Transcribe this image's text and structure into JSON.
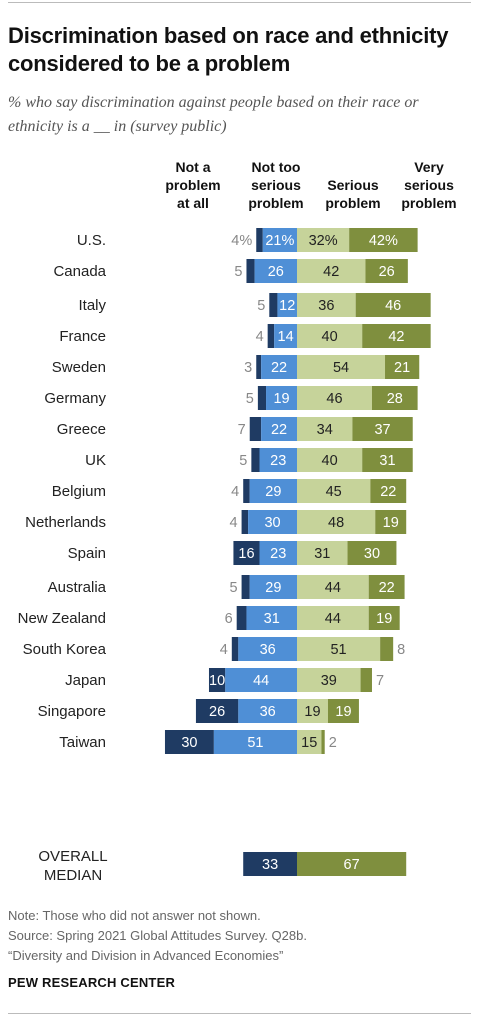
{
  "header": {
    "title": "Discrimination based on race and ethnicity considered to be a problem",
    "subtitle": "% who say discrimination against people based on their race or ethnicity is a __ in (survey public)"
  },
  "columns": [
    {
      "label": "Not a\nproblem\nat all"
    },
    {
      "label": "Not too\nserious\nproblem"
    },
    {
      "label": "Serious\nproblem"
    },
    {
      "label": "Very\nserious\nproblem"
    }
  ],
  "chart_data": {
    "type": "bar",
    "orientation": "horizontal-diverging-stacked",
    "series": [
      {
        "name": "Not a problem at all",
        "color": "#1f3b63"
      },
      {
        "name": "Not too serious problem",
        "color": "#4f8fd6"
      },
      {
        "name": "Serious problem",
        "color": "#c6d39a"
      },
      {
        "name": "Very serious problem",
        "color": "#7f8f3e"
      }
    ],
    "rows": [
      {
        "group": 0,
        "label": "U.S.",
        "values": [
          4,
          21,
          32,
          42
        ],
        "display": [
          "4%",
          "21%",
          "32%",
          "42%"
        ]
      },
      {
        "group": 0,
        "label": "Canada",
        "values": [
          5,
          26,
          42,
          26
        ],
        "display": [
          "5",
          "26",
          "42",
          "26"
        ]
      },
      {
        "group": 1,
        "label": "Italy",
        "values": [
          5,
          12,
          36,
          46
        ],
        "display": [
          "5",
          "12",
          "36",
          "46"
        ]
      },
      {
        "group": 1,
        "label": "France",
        "values": [
          4,
          14,
          40,
          42
        ],
        "display": [
          "4",
          "14",
          "40",
          "42"
        ]
      },
      {
        "group": 1,
        "label": "Sweden",
        "values": [
          3,
          22,
          54,
          21
        ],
        "display": [
          "3",
          "22",
          "54",
          "21"
        ]
      },
      {
        "group": 1,
        "label": "Germany",
        "values": [
          5,
          19,
          46,
          28
        ],
        "display": [
          "5",
          "19",
          "46",
          "28"
        ]
      },
      {
        "group": 1,
        "label": "Greece",
        "values": [
          7,
          22,
          34,
          37
        ],
        "display": [
          "7",
          "22",
          "34",
          "37"
        ]
      },
      {
        "group": 1,
        "label": "UK",
        "values": [
          5,
          23,
          40,
          31
        ],
        "display": [
          "5",
          "23",
          "40",
          "31"
        ]
      },
      {
        "group": 1,
        "label": "Belgium",
        "values": [
          4,
          29,
          45,
          22
        ],
        "display": [
          "4",
          "29",
          "45",
          "22"
        ]
      },
      {
        "group": 1,
        "label": "Netherlands",
        "values": [
          4,
          30,
          48,
          19
        ],
        "display": [
          "4",
          "30",
          "48",
          "19"
        ]
      },
      {
        "group": 1,
        "label": "Spain",
        "values": [
          16,
          23,
          31,
          30
        ],
        "display": [
          "16",
          "23",
          "31",
          "30"
        ]
      },
      {
        "group": 2,
        "label": "Australia",
        "values": [
          5,
          29,
          44,
          22
        ],
        "display": [
          "5",
          "29",
          "44",
          "22"
        ]
      },
      {
        "group": 2,
        "label": "New Zealand",
        "values": [
          6,
          31,
          44,
          19
        ],
        "display": [
          "6",
          "31",
          "44",
          "19"
        ]
      },
      {
        "group": 2,
        "label": "South Korea",
        "values": [
          4,
          36,
          51,
          8
        ],
        "display": [
          "4",
          "36",
          "51",
          "8"
        ]
      },
      {
        "group": 2,
        "label": "Japan",
        "values": [
          10,
          44,
          39,
          7
        ],
        "display": [
          "10",
          "44",
          "39",
          "7"
        ]
      },
      {
        "group": 2,
        "label": "Singapore",
        "values": [
          26,
          36,
          19,
          19
        ],
        "display": [
          "26",
          "36",
          "19",
          "19"
        ]
      },
      {
        "group": 2,
        "label": "Taiwan",
        "values": [
          30,
          51,
          15,
          2
        ],
        "display": [
          "30",
          "51",
          "15",
          "2"
        ]
      }
    ],
    "median": {
      "label": "OVERALL\nMEDIAN",
      "values": [
        33,
        67
      ],
      "display": [
        "33",
        "67"
      ],
      "colors": [
        "#1f3b63",
        "#7f8f3e"
      ]
    }
  },
  "footer": {
    "note": "Note: Those who did not answer not shown.",
    "source": "Source: Spring 2021 Global Attitudes Survey. Q28b.",
    "report": "“Diversity and Division in Advanced Economies”",
    "brand": "PEW RESEARCH CENTER"
  }
}
